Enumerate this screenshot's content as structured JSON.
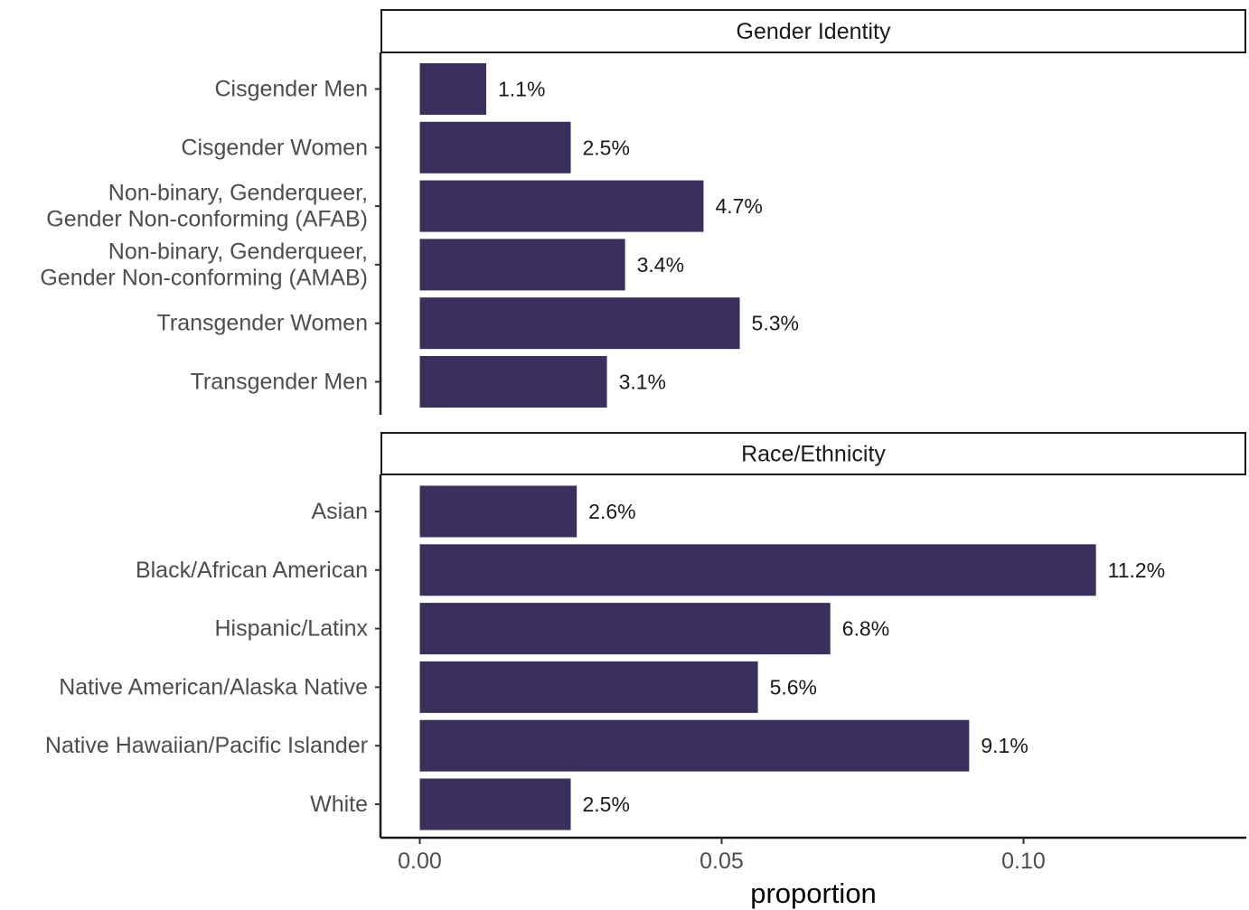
{
  "chart_data": {
    "type": "bar",
    "orientation": "horizontal",
    "xlabel": "proportion",
    "xlim": [
      0,
      0.135
    ],
    "x_ticks": [
      {
        "value": 0.0,
        "label": "0.00"
      },
      {
        "value": 0.05,
        "label": "0.05"
      },
      {
        "value": 0.1,
        "label": "0.10"
      }
    ],
    "bar_color": "#3b2f5e",
    "grid": false,
    "panels": [
      {
        "title": "Gender Identity",
        "categories": [
          {
            "label": [
              "Cisgender Men"
            ],
            "value": 0.011,
            "value_label": "1.1%"
          },
          {
            "label": [
              "Cisgender Women"
            ],
            "value": 0.025,
            "value_label": "2.5%"
          },
          {
            "label": [
              "Non-binary, Genderqueer,",
              "Gender Non-conforming (AFAB)"
            ],
            "value": 0.047,
            "value_label": "4.7%"
          },
          {
            "label": [
              "Non-binary, Genderqueer,",
              "Gender Non-conforming (AMAB)"
            ],
            "value": 0.034,
            "value_label": "3.4%"
          },
          {
            "label": [
              "Transgender  Women"
            ],
            "value": 0.053,
            "value_label": "5.3%"
          },
          {
            "label": [
              "Transgender Men"
            ],
            "value": 0.031,
            "value_label": "3.1%"
          }
        ]
      },
      {
        "title": "Race/Ethnicity",
        "categories": [
          {
            "label": [
              "Asian"
            ],
            "value": 0.026,
            "value_label": "2.6%"
          },
          {
            "label": [
              "Black/African American"
            ],
            "value": 0.112,
            "value_label": "11.2%"
          },
          {
            "label": [
              "Hispanic/Latinx"
            ],
            "value": 0.068,
            "value_label": "6.8%"
          },
          {
            "label": [
              "Native American/Alaska Native"
            ],
            "value": 0.056,
            "value_label": "5.6%"
          },
          {
            "label": [
              "Native Hawaiian/Pacific Islander"
            ],
            "value": 0.091,
            "value_label": "9.1%"
          },
          {
            "label": [
              "White"
            ],
            "value": 0.025,
            "value_label": "2.5%"
          }
        ]
      }
    ]
  }
}
